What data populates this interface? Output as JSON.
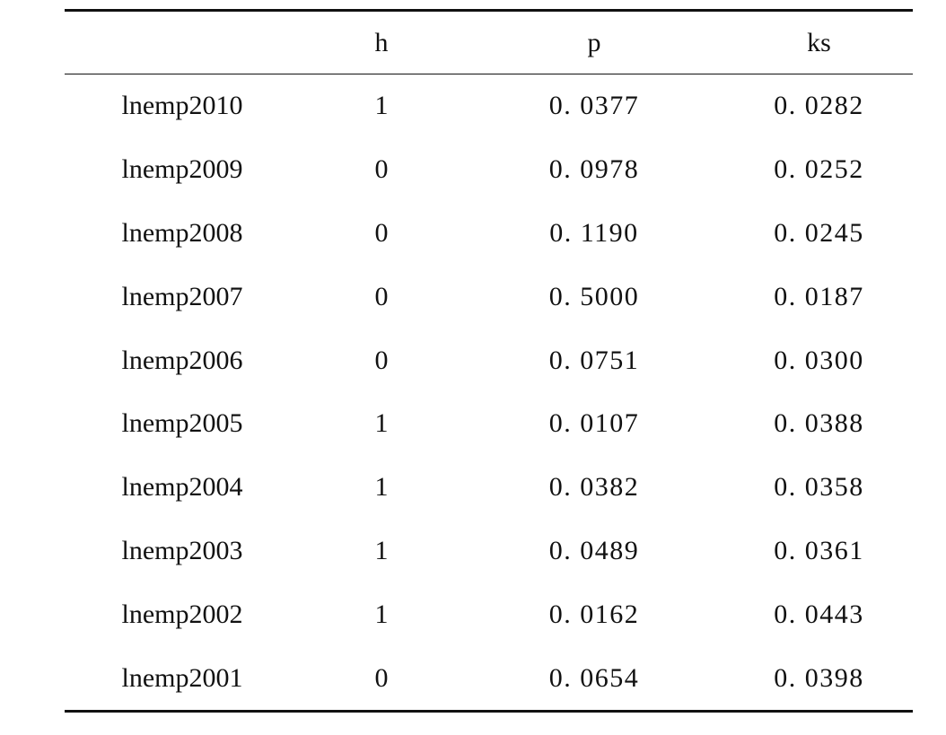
{
  "table": {
    "headers": [
      "",
      "h",
      "p",
      "ks"
    ],
    "rows": [
      [
        "lnemp2010",
        "1",
        "0. 0377",
        "0. 0282"
      ],
      [
        "lnemp2009",
        "0",
        "0. 0978",
        "0. 0252"
      ],
      [
        "lnemp2008",
        "0",
        "0. 1190",
        "0. 0245"
      ],
      [
        "lnemp2007",
        "0",
        "0. 5000",
        "0. 0187"
      ],
      [
        "lnemp2006",
        "0",
        "0. 0751",
        "0. 0300"
      ],
      [
        "lnemp2005",
        "1",
        "0. 0107",
        "0. 0388"
      ],
      [
        "lnemp2004",
        "1",
        "0. 0382",
        "0. 0358"
      ],
      [
        "lnemp2003",
        "1",
        "0. 0489",
        "0. 0361"
      ],
      [
        "lnemp2002",
        "1",
        "0. 0162",
        "0. 0443"
      ],
      [
        "lnemp2001",
        "0",
        "0. 0654",
        "0. 0398"
      ]
    ]
  }
}
